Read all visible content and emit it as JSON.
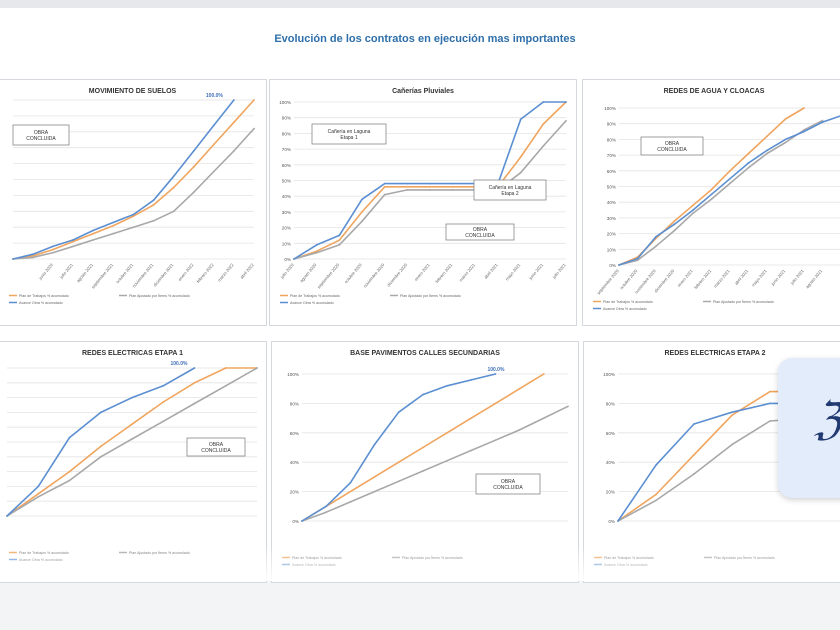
{
  "page": {
    "title": "Evolución de los contratos en ejecución mas importantes"
  },
  "colors": {
    "plan": "#f0a55e",
    "adjusted": "#a8a8a8",
    "progress": "#5b8fd1",
    "title": "#2e6faa"
  },
  "floating_card": {
    "icon": "sparkle-script-icon"
  },
  "chart_data": [
    {
      "type": "line",
      "title": "MOVIMIENTO DE SUELOS",
      "ylim": [
        0,
        100
      ],
      "yticks": [],
      "categories": [
        "",
        "",
        "",
        "",
        "",
        "",
        "",
        "",
        "",
        "",
        "",
        "",
        ""
      ],
      "xtick_labels": [
        "",
        "",
        "junio 2020",
        "julio 2021",
        "agosto 2021",
        "septiembre 2021",
        "octubre 2021",
        "noviembre 2021",
        "diciembre 2021",
        "enero 2022",
        "febrero 2022",
        "marzo 2022",
        "abril 2022"
      ],
      "series": [
        {
          "name": "Plan de Trabajos % acumulado",
          "color": "#f0a55e",
          "values": [
            0,
            2,
            6,
            11,
            16,
            21,
            27,
            34,
            45,
            58,
            72,
            86,
            100
          ]
        },
        {
          "name": "Plan Ajustado por Ítems % acumulado",
          "color": "#a8a8a8",
          "values": [
            0,
            1,
            4,
            8,
            12,
            16,
            20,
            24,
            30,
            42,
            55,
            68,
            82
          ]
        },
        {
          "name": "Avance Obra % acumulado",
          "color": "#5b8fd1",
          "values": [
            0,
            3,
            8,
            12,
            18,
            23,
            28,
            37,
            52,
            68,
            84,
            100,
            null
          ]
        }
      ],
      "peak_label": "100.0%",
      "note": "OBRA CONCLUIDA",
      "legend": "bottom"
    },
    {
      "type": "line",
      "title": "Cañerías Pluviales",
      "ylim": [
        0,
        100
      ],
      "yticks": [
        "0%",
        "10%",
        "20%",
        "30%",
        "40%",
        "50%",
        "60%",
        "70%",
        "80%",
        "90%",
        "100%"
      ],
      "categories": [
        "",
        "",
        "",
        "",
        "",
        "",
        "",
        "",
        "",
        "",
        "",
        "",
        ""
      ],
      "xtick_labels": [
        "julio 2020",
        "agosto 2020",
        "septiembre 2020",
        "octubre 2020",
        "noviembre 2020",
        "diciembre 2020",
        "enero 2021",
        "febrero 2021",
        "marzo 2021",
        "abril 2021",
        "mayo 2021",
        "junio 2021",
        "julio 2021"
      ],
      "series": [
        {
          "name": "Plan de Trabajos % acumulado",
          "color": "#f0a55e",
          "values": [
            0,
            5,
            12,
            30,
            46,
            46,
            46,
            46,
            46,
            46,
            65,
            86,
            100
          ]
        },
        {
          "name": "Plan Ajustado por Ítems % acumulado",
          "color": "#a8a8a8",
          "values": [
            0,
            4,
            9,
            24,
            41,
            44,
            44,
            44,
            44,
            44,
            55,
            72,
            88
          ]
        },
        {
          "name": "Avance Obra % acumulado",
          "color": "#5b8fd1",
          "values": [
            0,
            9,
            15,
            38,
            48,
            48,
            48,
            48,
            48,
            48,
            89,
            100,
            100
          ]
        }
      ],
      "notes": [
        "Cañería en Laguna Etapa 1",
        "Cañería en Laguna Etapa 2",
        "OBRA CONCLUIDA"
      ],
      "legend": "bottom"
    },
    {
      "type": "line",
      "title": "REDES DE AGUA Y CLOACAS",
      "ylim": [
        0,
        100
      ],
      "yticks": [
        "0%",
        "10%",
        "20%",
        "30%",
        "40%",
        "50%",
        "60%",
        "70%",
        "80%",
        "90%",
        "100%"
      ],
      "categories": [
        "",
        "",
        "",
        "",
        "",
        "",
        "",
        "",
        "",
        "",
        "",
        "",
        ""
      ],
      "xtick_labels": [
        "septiembre 2020",
        "octubre 2020",
        "noviembre 2020",
        "diciembre 2020",
        "enero 2021",
        "febrero 2021",
        "marzo 2021",
        "abril 2021",
        "mayo 2021",
        "junio 2021",
        "julio 2021",
        "agosto 2021",
        ""
      ],
      "series": [
        {
          "name": "Plan de Trabajos % acumulado",
          "color": "#f0a55e",
          "values": [
            0,
            5,
            17,
            28,
            38,
            48,
            60,
            71,
            82,
            93,
            100,
            null,
            null
          ]
        },
        {
          "name": "Plan Ajustado por Ítems % acumulado",
          "color": "#a8a8a8",
          "values": [
            0,
            3,
            12,
            22,
            33,
            42,
            52,
            62,
            71,
            78,
            86,
            92,
            null
          ]
        },
        {
          "name": "Avance Obra % acumulado",
          "color": "#5b8fd1",
          "values": [
            0,
            4,
            18,
            26,
            35,
            45,
            55,
            65,
            73,
            80,
            85,
            91,
            95
          ]
        }
      ],
      "note": "OBRA CONCLUIDA",
      "legend": "bottom"
    },
    {
      "type": "line",
      "title": "REDES ELECTRICAS ETAPA 1",
      "ylim": [
        0,
        100
      ],
      "yticks": [],
      "categories": [
        "",
        "",
        "",
        "",
        "",
        "",
        "",
        "",
        ""
      ],
      "xtick_labels": [
        "",
        "",
        "",
        "",
        "",
        "",
        "",
        "",
        ""
      ],
      "series": [
        {
          "name": "Plan de Trabajos % acumulado",
          "color": "#f0a55e",
          "values": [
            0,
            15,
            30,
            47,
            62,
            77,
            90,
            100,
            100
          ]
        },
        {
          "name": "Plan Ajustado por Ítems % acumulado",
          "color": "#a8a8a8",
          "values": [
            0,
            13,
            24,
            40,
            52,
            64,
            76,
            88,
            100
          ]
        },
        {
          "name": "Avance Obra % acumulado",
          "color": "#5b8fd1",
          "values": [
            0,
            20,
            53,
            70,
            80,
            88,
            100,
            null,
            null
          ]
        }
      ],
      "peak_label": "100.0%",
      "note": "OBRA CONCLUIDA",
      "legend": "bottom"
    },
    {
      "type": "line",
      "title": "BASE PAVIMENTOS CALLES SECUNDARIAS",
      "ylim": [
        0,
        100
      ],
      "yticks": [
        "0%",
        "20%",
        "40%",
        "60%",
        "80%",
        "100%"
      ],
      "categories": [
        "",
        "",
        "",
        "",
        "",
        "",
        "",
        "",
        "",
        "",
        "",
        ""
      ],
      "xtick_labels": [
        "",
        "",
        "",
        "",
        "",
        "",
        "",
        "",
        "",
        "",
        "",
        ""
      ],
      "series": [
        {
          "name": "Plan de Trabajos % acumulado",
          "color": "#f0a55e",
          "values": [
            0,
            10,
            20,
            30,
            40,
            50,
            60,
            70,
            80,
            90,
            100,
            null
          ]
        },
        {
          "name": "Plan Ajustado por Ítems % acumulado",
          "color": "#a8a8a8",
          "values": [
            0,
            6,
            13,
            20,
            27,
            34,
            41,
            48,
            55,
            62,
            70,
            78
          ]
        },
        {
          "name": "Avance Obra % acumulado",
          "color": "#5b8fd1",
          "values": [
            0,
            10,
            26,
            52,
            74,
            86,
            92,
            96,
            100,
            null,
            null,
            null
          ]
        }
      ],
      "peak_label": "100.0%",
      "note": "OBRA CONCLUIDA",
      "legend": "bottom"
    },
    {
      "type": "line",
      "title": "REDES ELECTRICAS ETAPA 2",
      "ylim": [
        0,
        100
      ],
      "yticks": [
        "0%",
        "20%",
        "40%",
        "60%",
        "80%",
        "100%"
      ],
      "categories": [
        "",
        "",
        "",
        "",
        "",
        "",
        ""
      ],
      "xtick_labels": [
        "",
        "",
        "",
        "",
        "",
        "",
        ""
      ],
      "series": [
        {
          "name": "Plan de Trabajos % acumulado",
          "color": "#f0a55e",
          "values": [
            0,
            18,
            45,
            72,
            88,
            88,
            88
          ]
        },
        {
          "name": "Plan Ajustado por Ítems % acumulado",
          "color": "#a8a8a8",
          "values": [
            0,
            14,
            32,
            52,
            68,
            70,
            70
          ]
        },
        {
          "name": "Avance Obra % acumulado",
          "color": "#5b8fd1",
          "values": [
            0,
            38,
            66,
            74,
            80,
            80,
            80
          ]
        }
      ],
      "legend": "bottom"
    }
  ]
}
